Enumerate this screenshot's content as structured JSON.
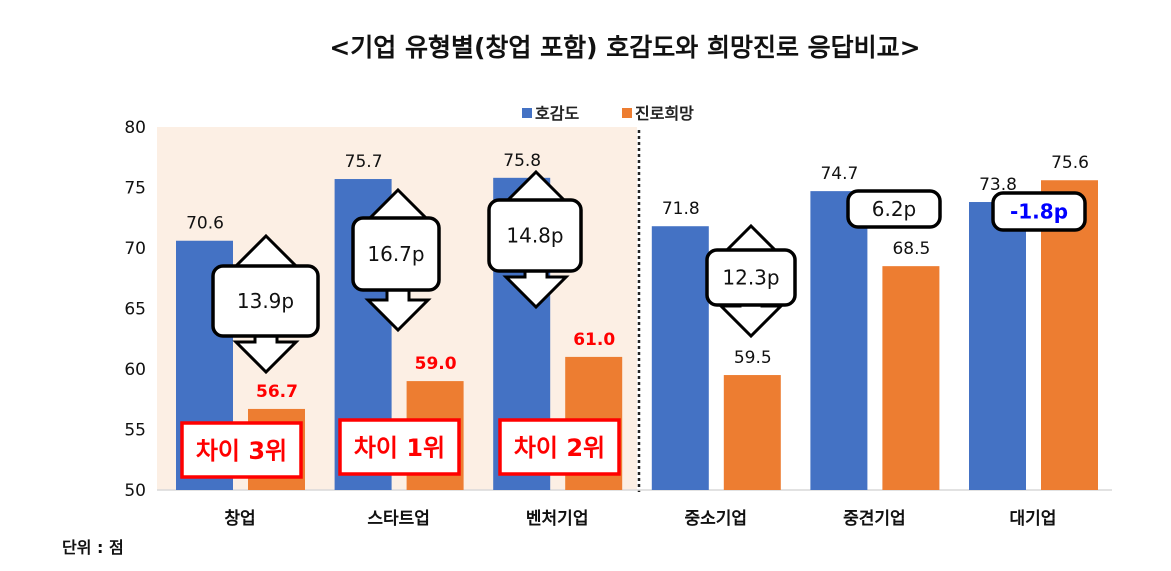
{
  "chart_data": {
    "type": "bar",
    "title": "<기업 유형별(창업 포함) 호감도와 희망진로 응답비교>",
    "categories": [
      "창업",
      "스타트업",
      "벤처기업",
      "중소기업",
      "중견기업",
      "대기업"
    ],
    "series": [
      {
        "name": "호감도",
        "color": "#4472C4",
        "values": [
          70.6,
          75.7,
          75.8,
          71.8,
          74.7,
          73.8
        ]
      },
      {
        "name": "진로희망",
        "color": "#ED7D31",
        "values": [
          56.7,
          59.0,
          61.0,
          59.5,
          68.5,
          75.6
        ]
      }
    ],
    "value_labels": {
      "호감도": [
        "70.6",
        "75.7",
        "75.8",
        "71.8",
        "74.7",
        "73.8"
      ],
      "진로희망": [
        "56.7",
        "59.0",
        "61.0",
        "59.5",
        "68.5",
        "75.6"
      ]
    },
    "ylim": [
      50,
      80
    ],
    "yticks": [
      "50",
      "55",
      "60",
      "65",
      "70",
      "75",
      "80"
    ],
    "legend_position": "top-center",
    "grid": false,
    "unit_note": "단위 : 점",
    "gap_labels": [
      "13.9p",
      "16.7p",
      "14.8p",
      "12.3p",
      "6.2p",
      "-1.8p"
    ],
    "rank_labels": [
      "차이 3위",
      "차이 1위",
      "차이 2위"
    ],
    "highlight_color": "#FCEFE4",
    "emphasis_color": "#FF0000",
    "negative_color": "#0000FF"
  }
}
